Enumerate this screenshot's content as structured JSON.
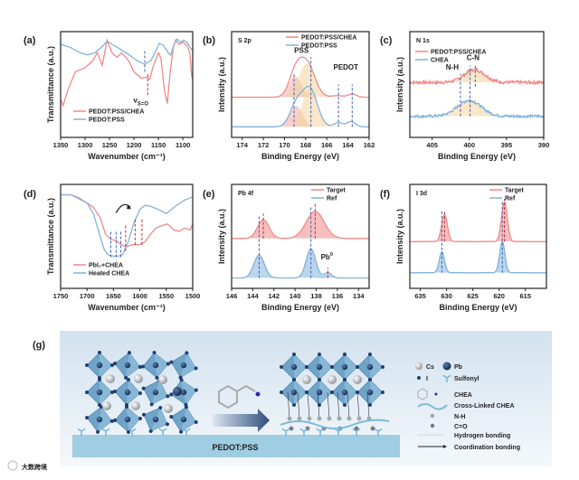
{
  "figure": {
    "panel_labels": [
      "(a)",
      "(b)",
      "(c)",
      "(d)",
      "(e)",
      "(f)",
      "(g)"
    ],
    "watermark": "大数跨境"
  },
  "colors": {
    "red": "#ee8a88",
    "blue": "#82b2dc",
    "fill_red": "#f1a9a4",
    "fill_orange": "#f6d49c",
    "dash_red": "#c0262d",
    "dash_blue": "#3b5fb8"
  },
  "chart_data": [
    {
      "type": "line",
      "id": "a",
      "tag": "",
      "xlabel": "Wavenumber (cm⁻¹)",
      "ylabel": "Transmittance (a.u.)",
      "xlim": [
        1350,
        1080
      ],
      "ylim": [
        0,
        1
      ],
      "xticks": [
        1350,
        1300,
        1250,
        1200,
        1150,
        1100
      ],
      "legend": "bottom-left",
      "series": [
        {
          "name": "PEDOT:PSS/CHEA",
          "color": "red",
          "x": [
            1350,
            1345,
            1335,
            1320,
            1300,
            1285,
            1275,
            1265,
            1255,
            1245,
            1235,
            1225,
            1210,
            1200,
            1185,
            1175,
            1168,
            1160,
            1150,
            1145,
            1138,
            1132,
            1126,
            1120,
            1115,
            1108,
            1100,
            1092,
            1086,
            1082,
            1080
          ],
          "y": [
            0.36,
            0.3,
            0.45,
            0.62,
            0.66,
            0.72,
            0.8,
            0.68,
            0.92,
            0.8,
            0.76,
            0.8,
            0.72,
            0.62,
            0.56,
            0.57,
            0.55,
            0.68,
            0.8,
            0.75,
            0.45,
            0.32,
            0.62,
            0.84,
            0.92,
            0.88,
            0.9,
            0.87,
            0.8,
            0.58,
            0.55
          ]
        },
        {
          "name": "PEDOT:PSS",
          "color": "blue",
          "x": [
            1350,
            1330,
            1310,
            1295,
            1280,
            1265,
            1255,
            1245,
            1230,
            1210,
            1195,
            1178,
            1165,
            1155,
            1148,
            1140,
            1130,
            1125,
            1118,
            1112,
            1105,
            1098,
            1090,
            1084,
            1080
          ],
          "y": [
            0.88,
            0.85,
            0.8,
            0.78,
            0.8,
            0.86,
            0.91,
            0.88,
            0.84,
            0.78,
            0.73,
            0.69,
            0.73,
            0.82,
            0.89,
            0.87,
            0.8,
            0.78,
            0.88,
            0.93,
            0.9,
            0.92,
            0.89,
            0.84,
            0.82
          ]
        }
      ],
      "vlines": [
        {
          "x": 1178,
          "color": "dash_blue",
          "y": [
            0.62,
            0.82
          ]
        },
        {
          "x": 1172,
          "color": "dash_red",
          "y": [
            0.4,
            0.6
          ]
        }
      ],
      "annotations": [
        {
          "text": "v",
          "sub": "S=O",
          "x": 1186,
          "y": 0.33
        }
      ]
    },
    {
      "type": "line",
      "id": "b",
      "tag": "S 2p",
      "xlabel": "Binding Energy (eV)",
      "ylabel": "Intensity (a.u.)",
      "xlim": [
        175,
        162
      ],
      "ylim": [
        0,
        1
      ],
      "xticks": [
        174,
        172,
        170,
        168,
        166,
        164,
        162
      ],
      "legend": "top-right",
      "series": [
        {
          "name": "PEDOT:PSS/CHEA",
          "color": "red",
          "offset": 0.38,
          "peaks": [
            {
              "c": 169.0,
              "h": 0.2,
              "w": 0.6,
              "fill": "fill_red"
            },
            {
              "c": 167.9,
              "h": 0.32,
              "w": 0.75,
              "fill": "fill_orange"
            },
            {
              "c": 165.0,
              "h": 0.015,
              "w": 0.5
            },
            {
              "c": 163.6,
              "h": 0.03,
              "w": 0.4
            }
          ]
        },
        {
          "name": "PEDOT:PSS",
          "color": "blue",
          "offset": 0.1,
          "peaks": [
            {
              "c": 168.9,
              "h": 0.2,
              "w": 0.6,
              "fill": "fill_red"
            },
            {
              "c": 167.6,
              "h": 0.36,
              "w": 0.7,
              "fill": "fill_orange"
            },
            {
              "c": 164.9,
              "h": 0.04,
              "w": 0.4
            },
            {
              "c": 163.7,
              "h": 0.05,
              "w": 0.4
            }
          ]
        }
      ],
      "vlines": [
        {
          "x": 169.1,
          "color": "dash_blue",
          "y": [
            0.1,
            0.6
          ]
        },
        {
          "x": 167.5,
          "color": "dash_blue",
          "y": [
            0.1,
            0.76
          ]
        },
        {
          "x": 164.9,
          "color": "dash_blue",
          "y": [
            0.1,
            0.5
          ]
        },
        {
          "x": 163.6,
          "color": "dash_blue",
          "y": [
            0.1,
            0.5
          ]
        }
      ],
      "annotations": [
        {
          "text": "PSS",
          "x": 168.4,
          "y": 0.8
        },
        {
          "text": "PEDOT",
          "x": 164.2,
          "y": 0.64
        }
      ]
    },
    {
      "type": "line",
      "id": "c",
      "tag": "N 1s",
      "xlabel": "Binding Energy (eV)",
      "ylabel": "Intensity (a.u.)",
      "xlim": [
        408,
        390
      ],
      "ylim": [
        0,
        1
      ],
      "xticks": [
        405,
        400,
        395,
        390
      ],
      "legend": "top-left",
      "series": [
        {
          "name": "PEDOT:PSS/CHEA",
          "color": "red",
          "offset": 0.52,
          "noise": 0.03,
          "peaks": [
            {
              "c": 399.3,
              "h": 0.12,
              "w": 1.4,
              "fill": "fill_orange"
            }
          ]
        },
        {
          "name": "CHEA",
          "color": "blue",
          "offset": 0.2,
          "noise": 0.025,
          "peaks": [
            {
              "c": 400.0,
              "h": 0.15,
              "w": 1.6,
              "fill": "fill_orange"
            }
          ]
        }
      ],
      "vlines": [
        {
          "x": 401.2,
          "color": "dash_blue",
          "y": [
            0.2,
            0.6
          ]
        },
        {
          "x": 399.9,
          "color": "dash_blue",
          "y": [
            0.2,
            0.68
          ]
        },
        {
          "x": 399.2,
          "color": "dash_blue",
          "y": [
            0.48,
            0.68
          ]
        }
      ],
      "annotations": [
        {
          "text": "N-H",
          "x": 402.3,
          "y": 0.64
        },
        {
          "text": "C-N",
          "x": 399.5,
          "y": 0.73
        }
      ]
    },
    {
      "type": "line",
      "id": "d",
      "tag": "",
      "xlabel": "Wavenumber (cm⁻¹)",
      "ylabel": "Transmittance (a.u.)",
      "xlim": [
        1750,
        1500
      ],
      "ylim": [
        0,
        1
      ],
      "xticks": [
        1750,
        1700,
        1650,
        1600,
        1550,
        1500
      ],
      "legend": "bottom-left",
      "series": [
        {
          "name": "PbI₂+CHEA",
          "color": "red",
          "x": [
            1750,
            1730,
            1715,
            1700,
            1688,
            1675,
            1665,
            1655,
            1645,
            1635,
            1625,
            1615,
            1600,
            1590,
            1580,
            1570,
            1560,
            1548,
            1535,
            1525,
            1515,
            1505,
            1500
          ],
          "y": [
            0.9,
            0.9,
            0.87,
            0.82,
            0.78,
            0.68,
            0.52,
            0.47,
            0.46,
            0.42,
            0.4,
            0.42,
            0.42,
            0.45,
            0.52,
            0.58,
            0.6,
            0.62,
            0.56,
            0.55,
            0.58,
            0.56,
            0.62
          ]
        },
        {
          "name": "Heated CHEA",
          "color": "blue",
          "x": [
            1750,
            1730,
            1715,
            1700,
            1688,
            1678,
            1668,
            1660,
            1650,
            1640,
            1632,
            1622,
            1612,
            1600,
            1590,
            1580,
            1565,
            1550,
            1540,
            1530,
            1515,
            1500
          ],
          "y": [
            0.9,
            0.9,
            0.86,
            0.82,
            0.72,
            0.55,
            0.38,
            0.32,
            0.31,
            0.31,
            0.33,
            0.45,
            0.62,
            0.76,
            0.8,
            0.79,
            0.76,
            0.72,
            0.76,
            0.8,
            0.85,
            0.88
          ]
        }
      ],
      "vlines": [
        {
          "x": 1655,
          "color": "dash_blue",
          "y": [
            0.3,
            0.55
          ]
        },
        {
          "x": 1645,
          "color": "dash_blue",
          "y": [
            0.3,
            0.55
          ]
        },
        {
          "x": 1636,
          "color": "dash_blue",
          "y": [
            0.3,
            0.55
          ]
        },
        {
          "x": 1627,
          "color": "dash_red",
          "y": [
            0.36,
            0.62
          ]
        },
        {
          "x": 1609,
          "color": "dash_red",
          "y": [
            0.42,
            0.68
          ]
        },
        {
          "x": 1596,
          "color": "dash_red",
          "y": [
            0.42,
            0.68
          ]
        }
      ],
      "annotations": [],
      "arrow": {
        "from": 1645,
        "to": 1618
      }
    },
    {
      "type": "line",
      "id": "e",
      "tag": "Pb 4f",
      "xlabel": "Binding Energy (eV)",
      "ylabel": "Intensity (a.u.)",
      "xlim": [
        146,
        133
      ],
      "ylim": [
        0,
        1
      ],
      "xticks": [
        146,
        144,
        142,
        140,
        138,
        136,
        134
      ],
      "legend": "top-right",
      "series": [
        {
          "name": "Target",
          "color": "red",
          "offset": 0.48,
          "peaks": [
            {
              "c": 143.0,
              "h": 0.18,
              "w": 0.55,
              "fill": "red"
            },
            {
              "c": 138.1,
              "h": 0.26,
              "w": 0.85,
              "fill": "red"
            }
          ]
        },
        {
          "name": "Ref",
          "color": "blue",
          "offset": 0.1,
          "peaks": [
            {
              "c": 143.4,
              "h": 0.22,
              "w": 0.5,
              "fill": "blue"
            },
            {
              "c": 138.5,
              "h": 0.28,
              "w": 0.45,
              "fill": "blue"
            },
            {
              "c": 136.9,
              "h": 0.05,
              "w": 0.35,
              "fill": "blue"
            }
          ]
        }
      ],
      "vlines": [
        {
          "x": 143.4,
          "color": "dash_blue",
          "y": [
            0.1,
            0.7
          ]
        },
        {
          "x": 143.0,
          "color": "dash_red",
          "y": [
            0.48,
            0.72
          ]
        },
        {
          "x": 138.5,
          "color": "dash_blue",
          "y": [
            0.1,
            0.78
          ]
        },
        {
          "x": 138.1,
          "color": "dash_red",
          "y": [
            0.48,
            0.82
          ]
        },
        {
          "x": 136.9,
          "color": "dash_red",
          "y": [
            0.1,
            0.2
          ]
        }
      ],
      "annotations": [
        {
          "text": "Pb",
          "sup": "0",
          "x": 137.0,
          "y": 0.28
        }
      ]
    },
    {
      "type": "line",
      "id": "f",
      "tag": "I 3d",
      "xlabel": "Binding Energy (eV)",
      "ylabel": "Intensity (a.u.)",
      "xlim": [
        637,
        611
      ],
      "ylim": [
        0,
        1
      ],
      "xticks": [
        635,
        630,
        625,
        620,
        615
      ],
      "legend": "top-right",
      "series": [
        {
          "name": "Target",
          "color": "red",
          "offset": 0.45,
          "peaks": [
            {
              "c": 630.4,
              "h": 0.26,
              "w": 0.55,
              "fill": "red"
            },
            {
              "c": 619.0,
              "h": 0.38,
              "w": 0.55,
              "fill": "red"
            }
          ]
        },
        {
          "name": "Ref",
          "color": "blue",
          "offset": 0.15,
          "peaks": [
            {
              "c": 630.9,
              "h": 0.2,
              "w": 0.5,
              "fill": "blue"
            },
            {
              "c": 619.4,
              "h": 0.3,
              "w": 0.5,
              "fill": "blue"
            }
          ]
        }
      ],
      "vlines": [
        {
          "x": 630.9,
          "color": "dash_blue",
          "y": [
            0.15,
            0.74
          ]
        },
        {
          "x": 630.4,
          "color": "dash_red",
          "y": [
            0.45,
            0.75
          ]
        },
        {
          "x": 619.4,
          "color": "dash_blue",
          "y": [
            0.15,
            0.83
          ]
        },
        {
          "x": 619.0,
          "color": "dash_red",
          "y": [
            0.45,
            0.86
          ]
        }
      ],
      "annotations": []
    }
  ],
  "schematic": {
    "substrate_label": "PEDOT:PSS",
    "legend": [
      {
        "icon": "cs-sphere-icon",
        "label": "Cs"
      },
      {
        "icon": "pb-sphere-icon",
        "label": "Pb"
      },
      {
        "icon": "i-sphere-icon",
        "label": "I"
      },
      {
        "icon": "sulfonyl-icon",
        "label": "Sulfonyl"
      },
      {
        "icon": "chea-molecule-icon",
        "label": "CHEA"
      },
      {
        "icon": "cross-linked-chea-icon",
        "label": "Cross-Linked CHEA"
      },
      {
        "icon": "n-h-icon",
        "label": "N-H"
      },
      {
        "icon": "c-o-icon",
        "label": "C=O"
      },
      {
        "icon": "hydrogen-bond-icon",
        "label": "Hydrogen bonding"
      },
      {
        "icon": "coordination-bond-icon",
        "label": "Coordination bonding"
      }
    ]
  }
}
